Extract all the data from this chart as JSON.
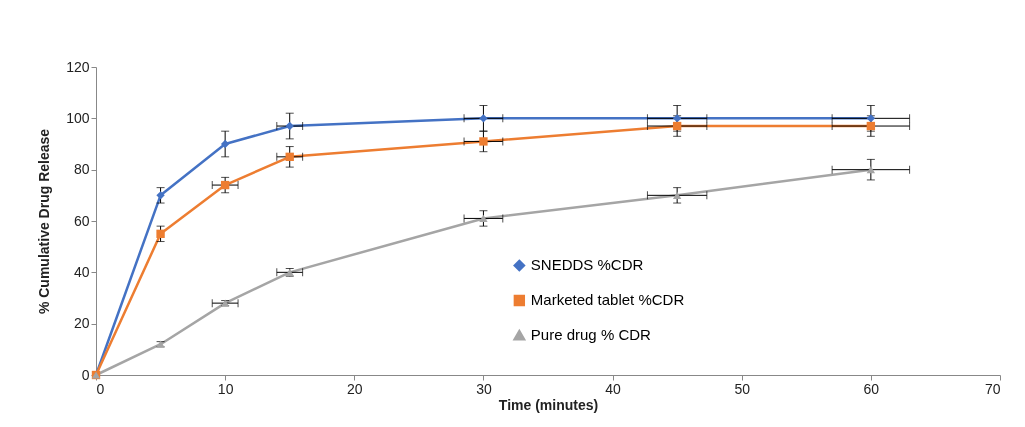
{
  "chart_data": {
    "type": "line",
    "xlabel": "Time (minutes)",
    "ylabel": "% Cumulative Drug Release",
    "x": [
      0,
      5,
      10,
      15,
      30,
      45,
      60
    ],
    "xlim": [
      0,
      70
    ],
    "xticks": [
      0,
      10,
      20,
      30,
      40,
      50,
      60,
      70
    ],
    "ylim": [
      0,
      120
    ],
    "yticks": [
      0,
      20,
      40,
      60,
      80,
      100,
      120
    ],
    "grid": false,
    "legend": "bottom right",
    "series": [
      {
        "name": "SNEDDS %CDR",
        "color": "#4472c4",
        "marker": "diamond",
        "values": [
          0,
          70,
          90,
          97,
          100,
          100,
          100
        ],
        "errors": [
          null,
          3,
          5,
          5,
          5,
          5,
          5
        ],
        "xerrors": [
          null,
          null,
          null,
          1,
          1.5,
          2.3,
          3
        ]
      },
      {
        "name": "Marketed tablet %CDR",
        "color": "#ed7d31",
        "marker": "square",
        "values": [
          0,
          55,
          74,
          85,
          91,
          97,
          97
        ],
        "errors": [
          null,
          3,
          3,
          4,
          4,
          4,
          4
        ],
        "xerrors": [
          null,
          null,
          1,
          1,
          1.5,
          2.3,
          3
        ]
      },
      {
        "name": "Pure drug % CDR",
        "color": "#a5a5a5",
        "marker": "triangle",
        "values": [
          0,
          12,
          28,
          40,
          61,
          70,
          80
        ],
        "errors": [
          null,
          1,
          1,
          1.5,
          3,
          3,
          4
        ],
        "xerrors": [
          null,
          null,
          1,
          1,
          1.5,
          2.3,
          3
        ]
      }
    ]
  }
}
